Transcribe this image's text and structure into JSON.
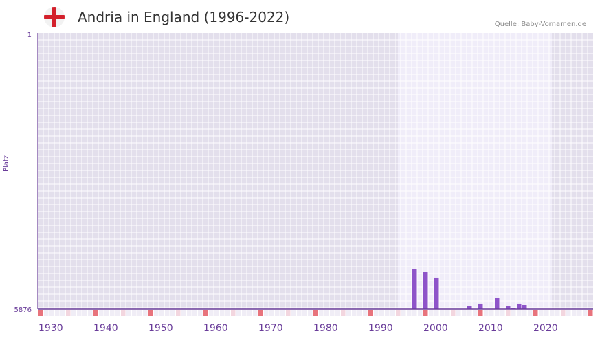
{
  "header": {
    "title": "Andria in England (1996-2022)",
    "source": "Quelle: Baby-Vornamen.de",
    "flag_icon": "england-flag"
  },
  "chart_data": {
    "type": "bar",
    "title": "Andria in England (1996-2022)",
    "ylabel": "Platz",
    "xlabel": "",
    "ylim": [
      5876,
      1
    ],
    "y_ticks": [
      "1",
      "5876"
    ],
    "x_ticks": [
      "1930",
      "1940",
      "1950",
      "1960",
      "1970",
      "1980",
      "1990",
      "2000",
      "2010",
      "2020"
    ],
    "x_range": [
      1928,
      2028
    ],
    "highlight_range": [
      1994,
      2021
    ],
    "years": [
      1996,
      1998,
      2000,
      2006,
      2008,
      2011,
      2013,
      2014,
      2015,
      2016
    ],
    "values": [
      5024,
      5083,
      5200,
      5817,
      5758,
      5641,
      5803,
      5847,
      5758,
      5788
    ],
    "bar_color": "#8e54c9",
    "marker_color": "#e8737c"
  }
}
